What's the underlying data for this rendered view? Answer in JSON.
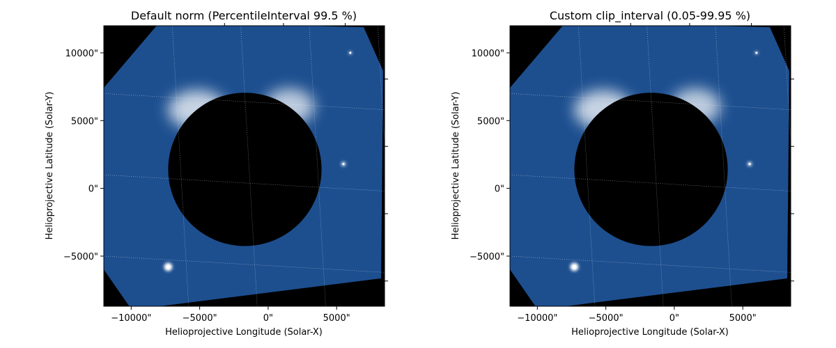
{
  "chart_data": [
    {
      "type": "heatmap",
      "title": "Default norm (PercentileInterval 99.5 %)",
      "xlabel": "Helioprojective Longitude (Solar-X)",
      "ylabel": "Helioprojective Latitude (Solar-Y)",
      "xlim": [
        -12000,
        8500
      ],
      "ylim": [
        -8700,
        12000
      ],
      "x_ticks": [
        -10000,
        -5000,
        0,
        5000
      ],
      "x_tick_labels": [
        "−10000\"",
        "−5000\"",
        "0\"",
        "5000\""
      ],
      "y_ticks": [
        -5000,
        0,
        5000,
        10000
      ],
      "y_tick_labels": [
        "−5000\"",
        "0\"",
        "5000\"",
        "10000\""
      ],
      "colormap": "blue-white (soholasco2)",
      "grid": "dotted",
      "occulter_center": [
        -1700,
        1400
      ],
      "occulter_radius": 5600
    },
    {
      "type": "heatmap",
      "title": "Custom clip_interval (0.05-99.95 %)",
      "xlabel": "Helioprojective Longitude (Solar-X)",
      "ylabel": "Helioprojective Latitude (Solar-Y)",
      "xlim": [
        -12000,
        8500
      ],
      "ylim": [
        -8700,
        12000
      ],
      "x_ticks": [
        -10000,
        -5000,
        0,
        5000
      ],
      "x_tick_labels": [
        "−10000\"",
        "−5000\"",
        "0\"",
        "5000\""
      ],
      "y_ticks": [
        -5000,
        0,
        5000,
        10000
      ],
      "y_tick_labels": [
        "−5000\"",
        "0\"",
        "5000\"",
        "10000\""
      ],
      "colormap": "blue-white (soholasco2)",
      "grid": "dotted",
      "occulter_center": [
        -1700,
        1400
      ],
      "occulter_radius": 5600
    }
  ],
  "colors": {
    "background": "#000000",
    "field": "#1d4f8f",
    "field_dark": "#0d2f63",
    "glow": "#ffffff",
    "grid": "#ffffff"
  }
}
